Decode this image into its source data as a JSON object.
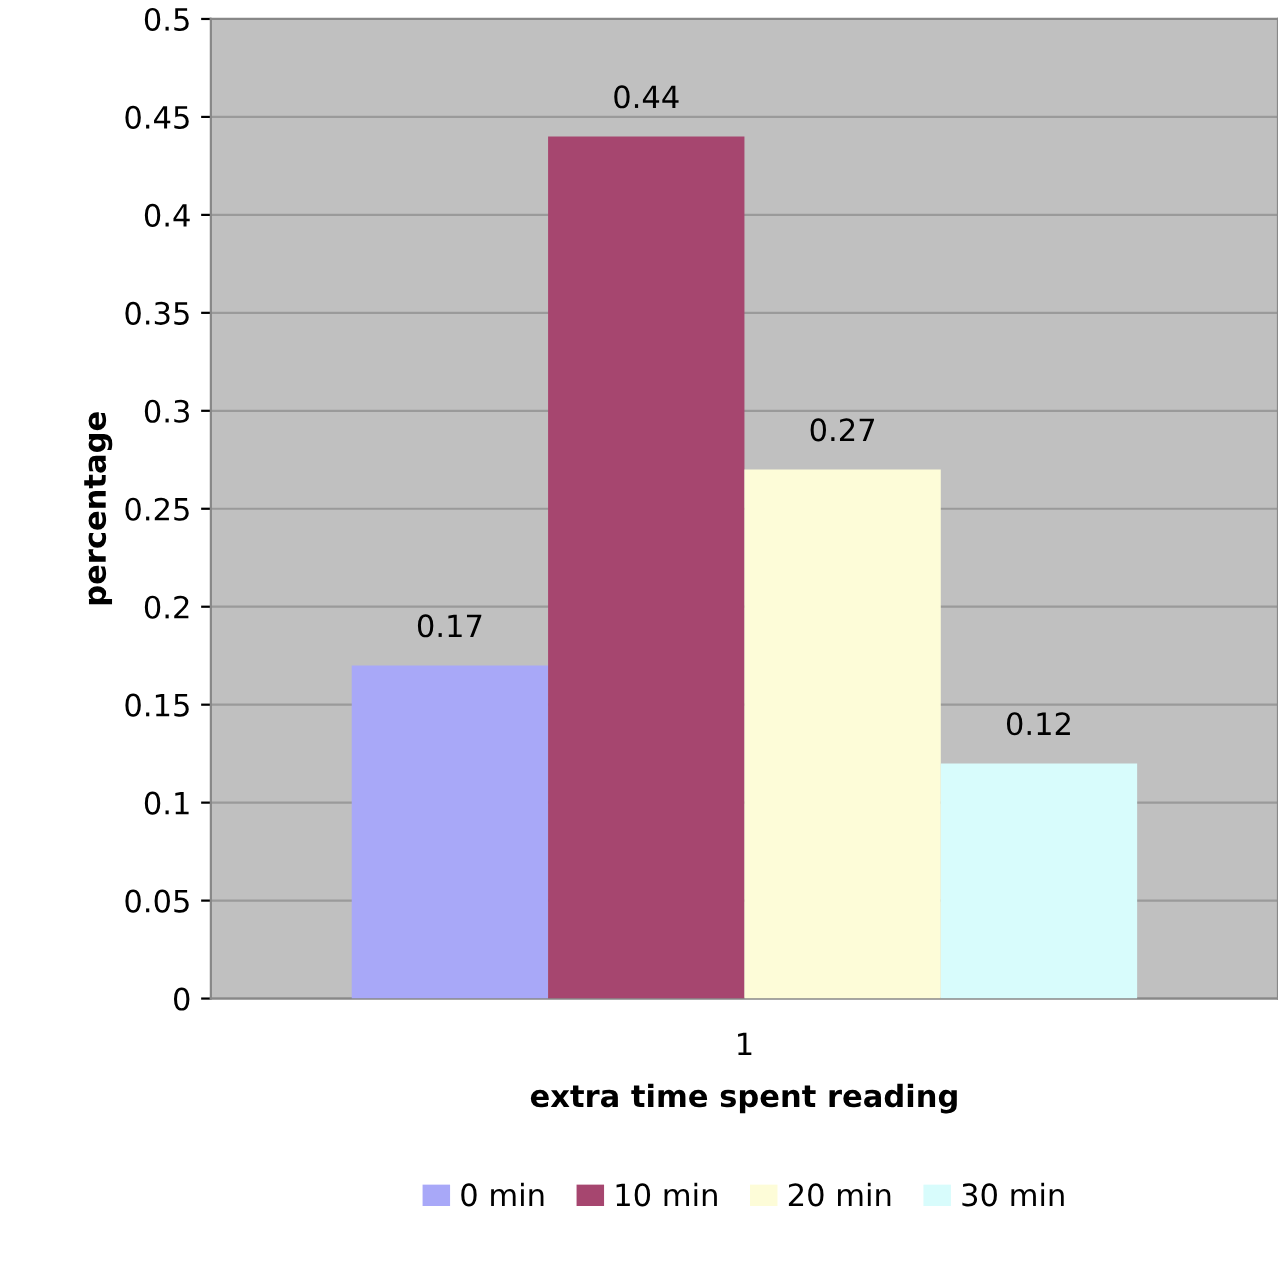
{
  "chart_data": {
    "type": "bar",
    "categories": [
      "1"
    ],
    "series": [
      {
        "name": "0 min",
        "color": "#a8a8f8",
        "values": [
          0.17
        ]
      },
      {
        "name": "10 min",
        "color": "#a6466f",
        "values": [
          0.44
        ]
      },
      {
        "name": "20 min",
        "color": "#fdfcd8",
        "values": [
          0.27
        ]
      },
      {
        "name": "30 min",
        "color": "#d8fcfc",
        "values": [
          0.12
        ]
      }
    ],
    "xlabel": "extra time spent reading",
    "ylabel": "percentage",
    "ylim": [
      0,
      0.5
    ],
    "yticks": [
      0,
      0.05,
      0.1,
      0.15,
      0.2,
      0.25,
      0.3,
      0.35,
      0.4,
      0.45,
      0.5
    ],
    "grid": "y",
    "legend": "bottom",
    "data_labels": true
  }
}
